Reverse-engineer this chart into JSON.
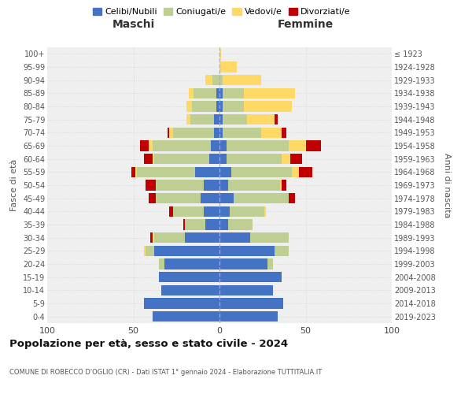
{
  "age_groups": [
    "0-4",
    "5-9",
    "10-14",
    "15-19",
    "20-24",
    "25-29",
    "30-34",
    "35-39",
    "40-44",
    "45-49",
    "50-54",
    "55-59",
    "60-64",
    "65-69",
    "70-74",
    "75-79",
    "80-84",
    "85-89",
    "90-94",
    "95-99",
    "100+"
  ],
  "birth_years": [
    "2019-2023",
    "2014-2018",
    "2009-2013",
    "2004-2008",
    "1999-2003",
    "1994-1998",
    "1989-1993",
    "1984-1988",
    "1979-1983",
    "1974-1978",
    "1969-1973",
    "1964-1968",
    "1959-1963",
    "1954-1958",
    "1949-1953",
    "1944-1948",
    "1939-1943",
    "1934-1938",
    "1929-1933",
    "1924-1928",
    "≤ 1923"
  ],
  "maschi": {
    "celibinubili": [
      39,
      44,
      34,
      35,
      32,
      38,
      20,
      8,
      9,
      11,
      9,
      14,
      6,
      5,
      3,
      3,
      2,
      2,
      0,
      0,
      0
    ],
    "coniugati": [
      0,
      0,
      0,
      0,
      3,
      5,
      18,
      12,
      18,
      26,
      28,
      34,
      32,
      34,
      24,
      14,
      14,
      13,
      4,
      0,
      0
    ],
    "vedovi": [
      0,
      0,
      0,
      0,
      0,
      1,
      1,
      0,
      0,
      0,
      0,
      1,
      1,
      2,
      2,
      2,
      3,
      3,
      4,
      0,
      0
    ],
    "divorziati": [
      0,
      0,
      0,
      0,
      0,
      0,
      1,
      1,
      2,
      4,
      6,
      2,
      5,
      5,
      1,
      0,
      0,
      0,
      0,
      0,
      0
    ]
  },
  "femmine": {
    "celibinubili": [
      34,
      37,
      31,
      36,
      28,
      32,
      18,
      5,
      6,
      8,
      5,
      7,
      4,
      4,
      2,
      2,
      2,
      2,
      0,
      0,
      0
    ],
    "coniugate": [
      0,
      0,
      0,
      0,
      3,
      8,
      22,
      14,
      20,
      32,
      30,
      35,
      32,
      36,
      22,
      14,
      12,
      12,
      2,
      0,
      0
    ],
    "vedove": [
      0,
      0,
      0,
      0,
      0,
      0,
      0,
      0,
      1,
      0,
      1,
      4,
      5,
      10,
      12,
      16,
      28,
      30,
      22,
      10,
      1
    ],
    "divorziate": [
      0,
      0,
      0,
      0,
      0,
      0,
      0,
      0,
      0,
      4,
      3,
      8,
      7,
      9,
      3,
      2,
      0,
      0,
      0,
      0,
      0
    ]
  },
  "colors": {
    "celibinubili": "#4472C4",
    "coniugati": "#BFCE93",
    "vedovi": "#FFD966",
    "divorziati": "#C00000"
  },
  "title": "Popolazione per età, sesso e stato civile - 2024",
  "subtitle": "COMUNE DI ROBECCO D'OGLIO (CR) - Dati ISTAT 1° gennaio 2024 - Elaborazione TUTTITALIA.IT",
  "xlabel_left": "Maschi",
  "xlabel_right": "Femmine",
  "ylabel_left": "Fasce di età",
  "ylabel_right": "Anni di nascita",
  "xlim": 100,
  "background_color": "#ffffff",
  "plot_bg": "#efefef"
}
